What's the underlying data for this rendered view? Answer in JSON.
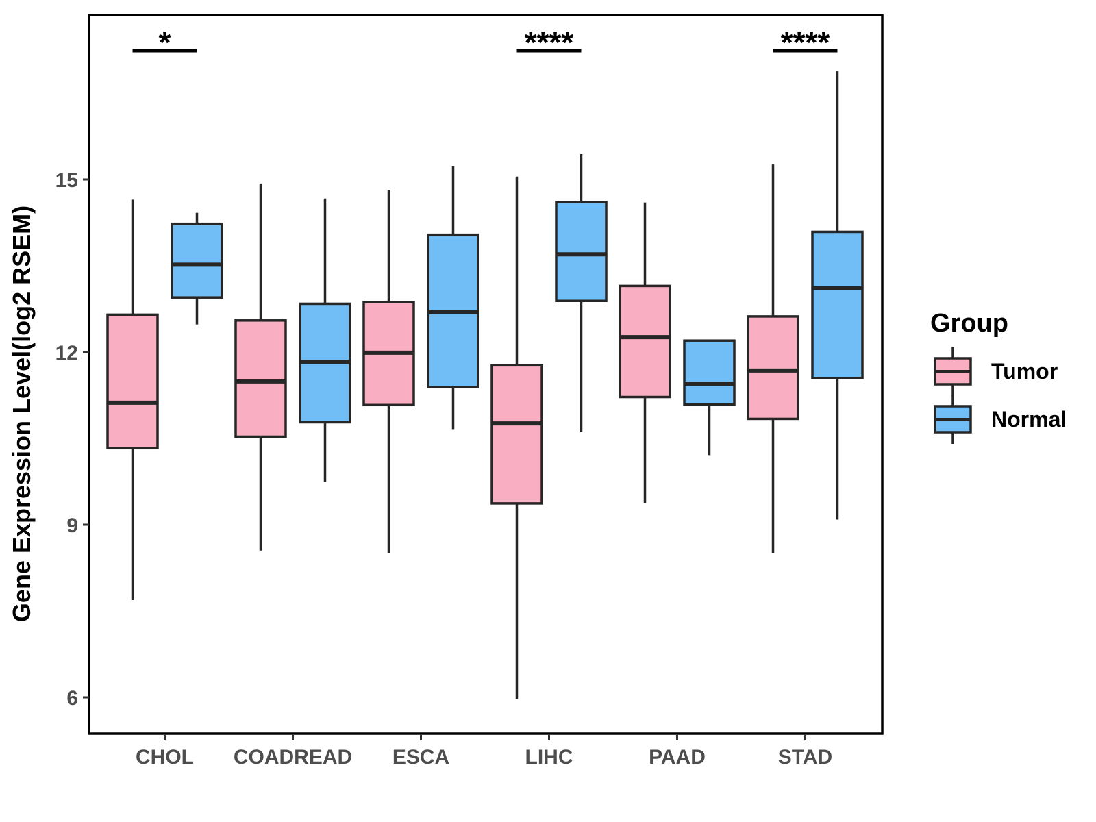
{
  "chart_data": {
    "type": "boxplot",
    "title": "",
    "ylabel": "Gene Expression Level(log2 RSEM)",
    "xlabel": "",
    "categories": [
      "CHOL",
      "COADREAD",
      "ESCA",
      "LIHC",
      "PAAD",
      "STAD"
    ],
    "y_ticks": [
      6,
      9,
      12,
      15
    ],
    "ylim": [
      5.4,
      17.9
    ],
    "grid": false,
    "legend_position": "right",
    "groups": [
      "Tumor",
      "Normal"
    ],
    "box_border_color": "#262626",
    "series": [
      {
        "name": "Tumor",
        "color": "#F9AEC1",
        "boxes": [
          {
            "category": "CHOL",
            "low": 7.69,
            "q1": 10.33,
            "median": 11.12,
            "q3": 12.65,
            "high": 14.65
          },
          {
            "category": "COADREAD",
            "low": 8.55,
            "q1": 10.53,
            "median": 11.49,
            "q3": 12.55,
            "high": 14.93
          },
          {
            "category": "ESCA",
            "low": 8.5,
            "q1": 11.08,
            "median": 11.99,
            "q3": 12.87,
            "high": 14.82
          },
          {
            "category": "LIHC",
            "low": 5.97,
            "q1": 9.37,
            "median": 10.76,
            "q3": 11.77,
            "high": 15.05
          },
          {
            "category": "PAAD",
            "low": 9.37,
            "q1": 11.22,
            "median": 12.26,
            "q3": 13.15,
            "high": 14.6
          },
          {
            "category": "STAD",
            "low": 8.5,
            "q1": 10.84,
            "median": 11.68,
            "q3": 12.62,
            "high": 15.26
          }
        ]
      },
      {
        "name": "Normal",
        "color": "#70BEF5",
        "boxes": [
          {
            "category": "CHOL",
            "low": 12.48,
            "q1": 12.95,
            "median": 13.52,
            "q3": 14.23,
            "high": 14.42
          },
          {
            "category": "COADREAD",
            "low": 9.74,
            "q1": 10.78,
            "median": 11.83,
            "q3": 12.84,
            "high": 14.67
          },
          {
            "category": "ESCA",
            "low": 10.65,
            "q1": 11.39,
            "median": 12.69,
            "q3": 14.04,
            "high": 15.23
          },
          {
            "category": "LIHC",
            "low": 10.61,
            "q1": 12.89,
            "median": 13.7,
            "q3": 14.61,
            "high": 15.44
          },
          {
            "category": "PAAD",
            "low": 10.21,
            "q1": 11.09,
            "median": 11.45,
            "q3": 12.2,
            "high": 12.2
          },
          {
            "category": "STAD",
            "low": 9.09,
            "q1": 11.55,
            "median": 13.11,
            "q3": 14.09,
            "high": 16.88
          }
        ]
      }
    ],
    "significance": [
      {
        "category": "CHOL",
        "label": "*"
      },
      {
        "category": "LIHC",
        "label": "****"
      },
      {
        "category": "STAD",
        "label": "****"
      }
    ]
  },
  "legend": {
    "title": "Group",
    "items": [
      {
        "label": "Tumor",
        "color": "#F9AEC1"
      },
      {
        "label": "Normal",
        "color": "#70BEF5"
      }
    ]
  }
}
